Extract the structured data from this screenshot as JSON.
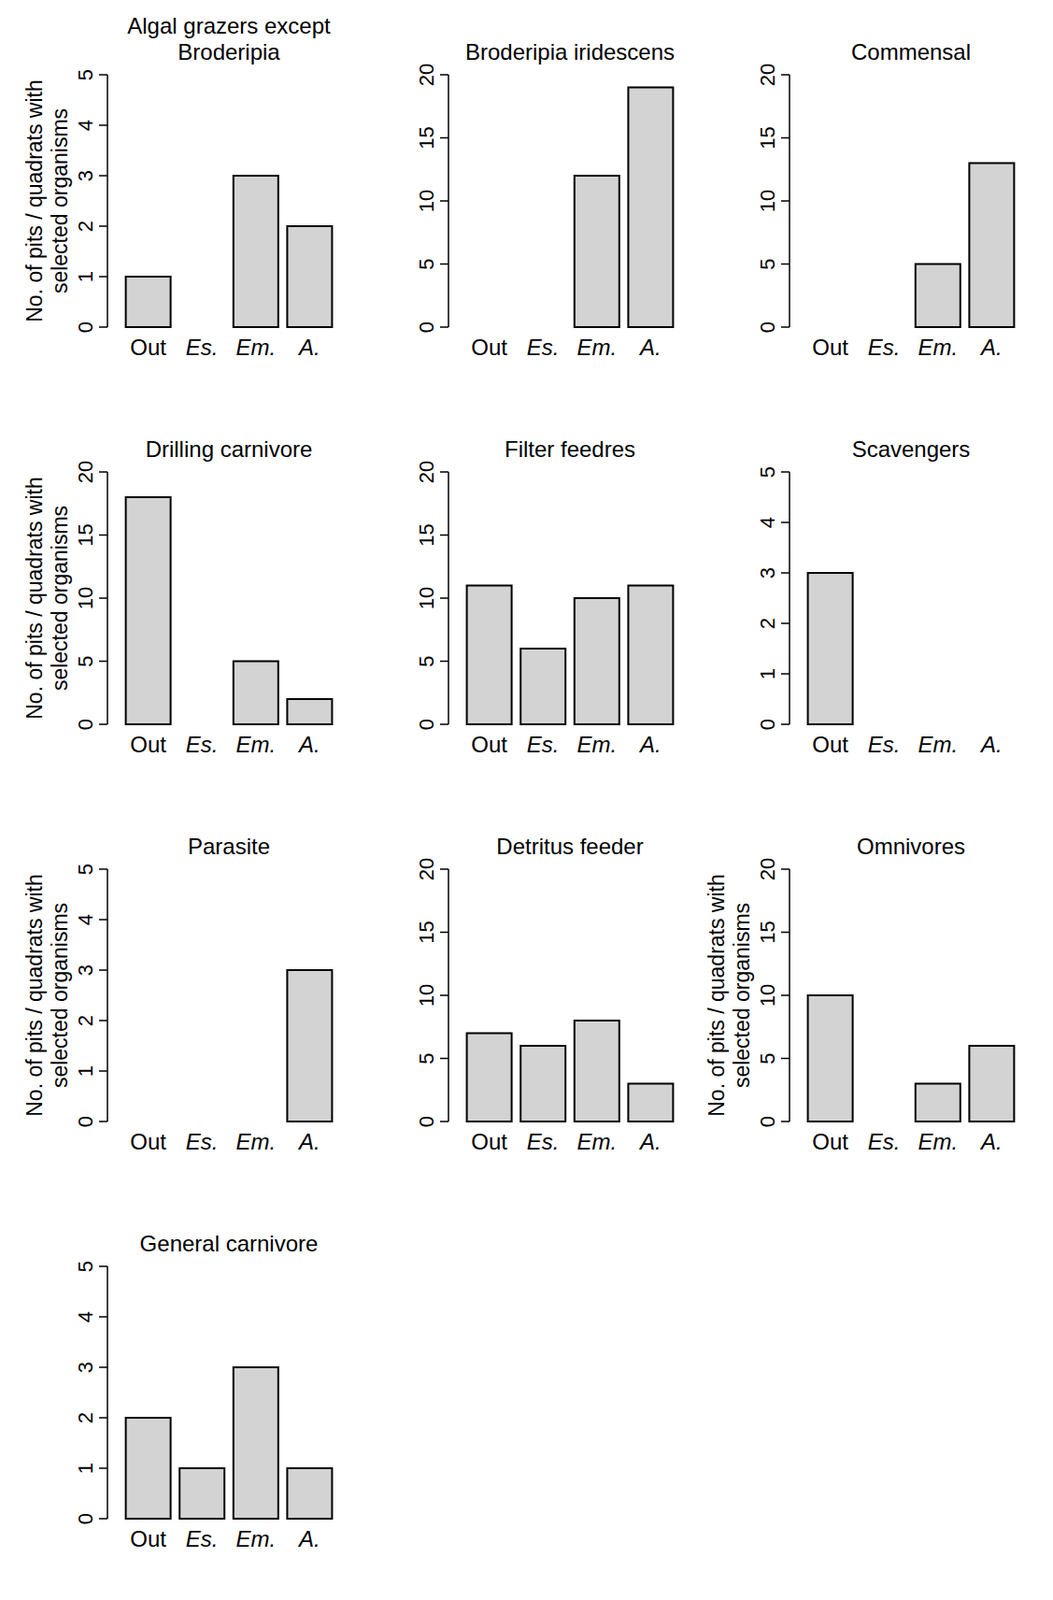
{
  "chart_data": [
    {
      "type": "bar",
      "title": "Algal grazers except Broderipia",
      "categories": [
        "Out",
        "Es.",
        "Em.",
        "A."
      ],
      "values": [
        1,
        0,
        3,
        2
      ],
      "color": "#d3d3d3",
      "ylim": [
        0,
        5
      ],
      "yticks": [
        0,
        1,
        2,
        3,
        4,
        5
      ],
      "y_label": "No. of pits / quadrats with selected organisms"
    },
    {
      "type": "bar",
      "title": "Broderipia iridescens",
      "categories": [
        "Out",
        "Es.",
        "Em.",
        "A."
      ],
      "values": [
        0,
        0,
        12,
        19
      ],
      "color": "#d3d3d3",
      "ylim": [
        0,
        20
      ],
      "yticks": [
        0,
        5,
        10,
        15,
        20
      ]
    },
    {
      "type": "bar",
      "title": "Commensal",
      "categories": [
        "Out",
        "Es.",
        "Em.",
        "A."
      ],
      "values": [
        0,
        0,
        5,
        13
      ],
      "color": "#d3d3d3",
      "ylim": [
        0,
        20
      ],
      "yticks": [
        0,
        5,
        10,
        15,
        20
      ]
    },
    {
      "type": "bar",
      "title": "Drilling carnivore",
      "categories": [
        "Out",
        "Es.",
        "Em.",
        "A."
      ],
      "values": [
        18,
        0,
        5,
        2
      ],
      "color": "#d3d3d3",
      "ylim": [
        0,
        20
      ],
      "yticks": [
        0,
        5,
        10,
        15,
        20
      ],
      "y_label": "No. of pits / quadrats with selected organisms"
    },
    {
      "type": "bar",
      "title": "Filter feedres",
      "categories": [
        "Out",
        "Es.",
        "Em.",
        "A."
      ],
      "values": [
        11,
        6,
        10,
        11
      ],
      "color": "#d3d3d3",
      "ylim": [
        0,
        20
      ],
      "yticks": [
        0,
        5,
        10,
        15,
        20
      ]
    },
    {
      "type": "bar",
      "title": "Scavengers",
      "categories": [
        "Out",
        "Es.",
        "Em.",
        "A."
      ],
      "values": [
        3,
        0,
        0,
        0
      ],
      "color": "#d3d3d3",
      "ylim": [
        0,
        5
      ],
      "yticks": [
        0,
        1,
        2,
        3,
        4,
        5
      ]
    },
    {
      "type": "bar",
      "title": "Parasite",
      "categories": [
        "Out",
        "Es.",
        "Em.",
        "A."
      ],
      "values": [
        0,
        0,
        0,
        3
      ],
      "color": "#d3d3d3",
      "ylim": [
        0,
        5
      ],
      "yticks": [
        0,
        1,
        2,
        3,
        4,
        5
      ],
      "y_label": "No. of pits / quadrats with selected organisms"
    },
    {
      "type": "bar",
      "title": "Detritus feeder",
      "categories": [
        "Out",
        "Es.",
        "Em.",
        "A."
      ],
      "values": [
        7,
        6,
        8,
        3
      ],
      "color": "#d3d3d3",
      "ylim": [
        0,
        20
      ],
      "yticks": [
        0,
        5,
        10,
        15,
        20
      ]
    },
    {
      "type": "bar",
      "title": "Omnivores",
      "categories": [
        "Out",
        "Es.",
        "Em.",
        "A."
      ],
      "values": [
        10,
        0,
        3,
        6
      ],
      "color": "#d3d3d3",
      "ylim": [
        0,
        20
      ],
      "yticks": [
        0,
        5,
        10,
        15,
        20
      ],
      "y_label": "No. of pits / quadrats with selected organisms"
    },
    {
      "type": "bar",
      "title": "General carnivore",
      "categories": [
        "Out",
        "Es.",
        "Em.",
        "A."
      ],
      "values": [
        2,
        1,
        3,
        1
      ],
      "color": "#d3d3d3",
      "ylim": [
        0,
        5
      ],
      "yticks": [
        0,
        1,
        2,
        3,
        4,
        5
      ]
    }
  ]
}
